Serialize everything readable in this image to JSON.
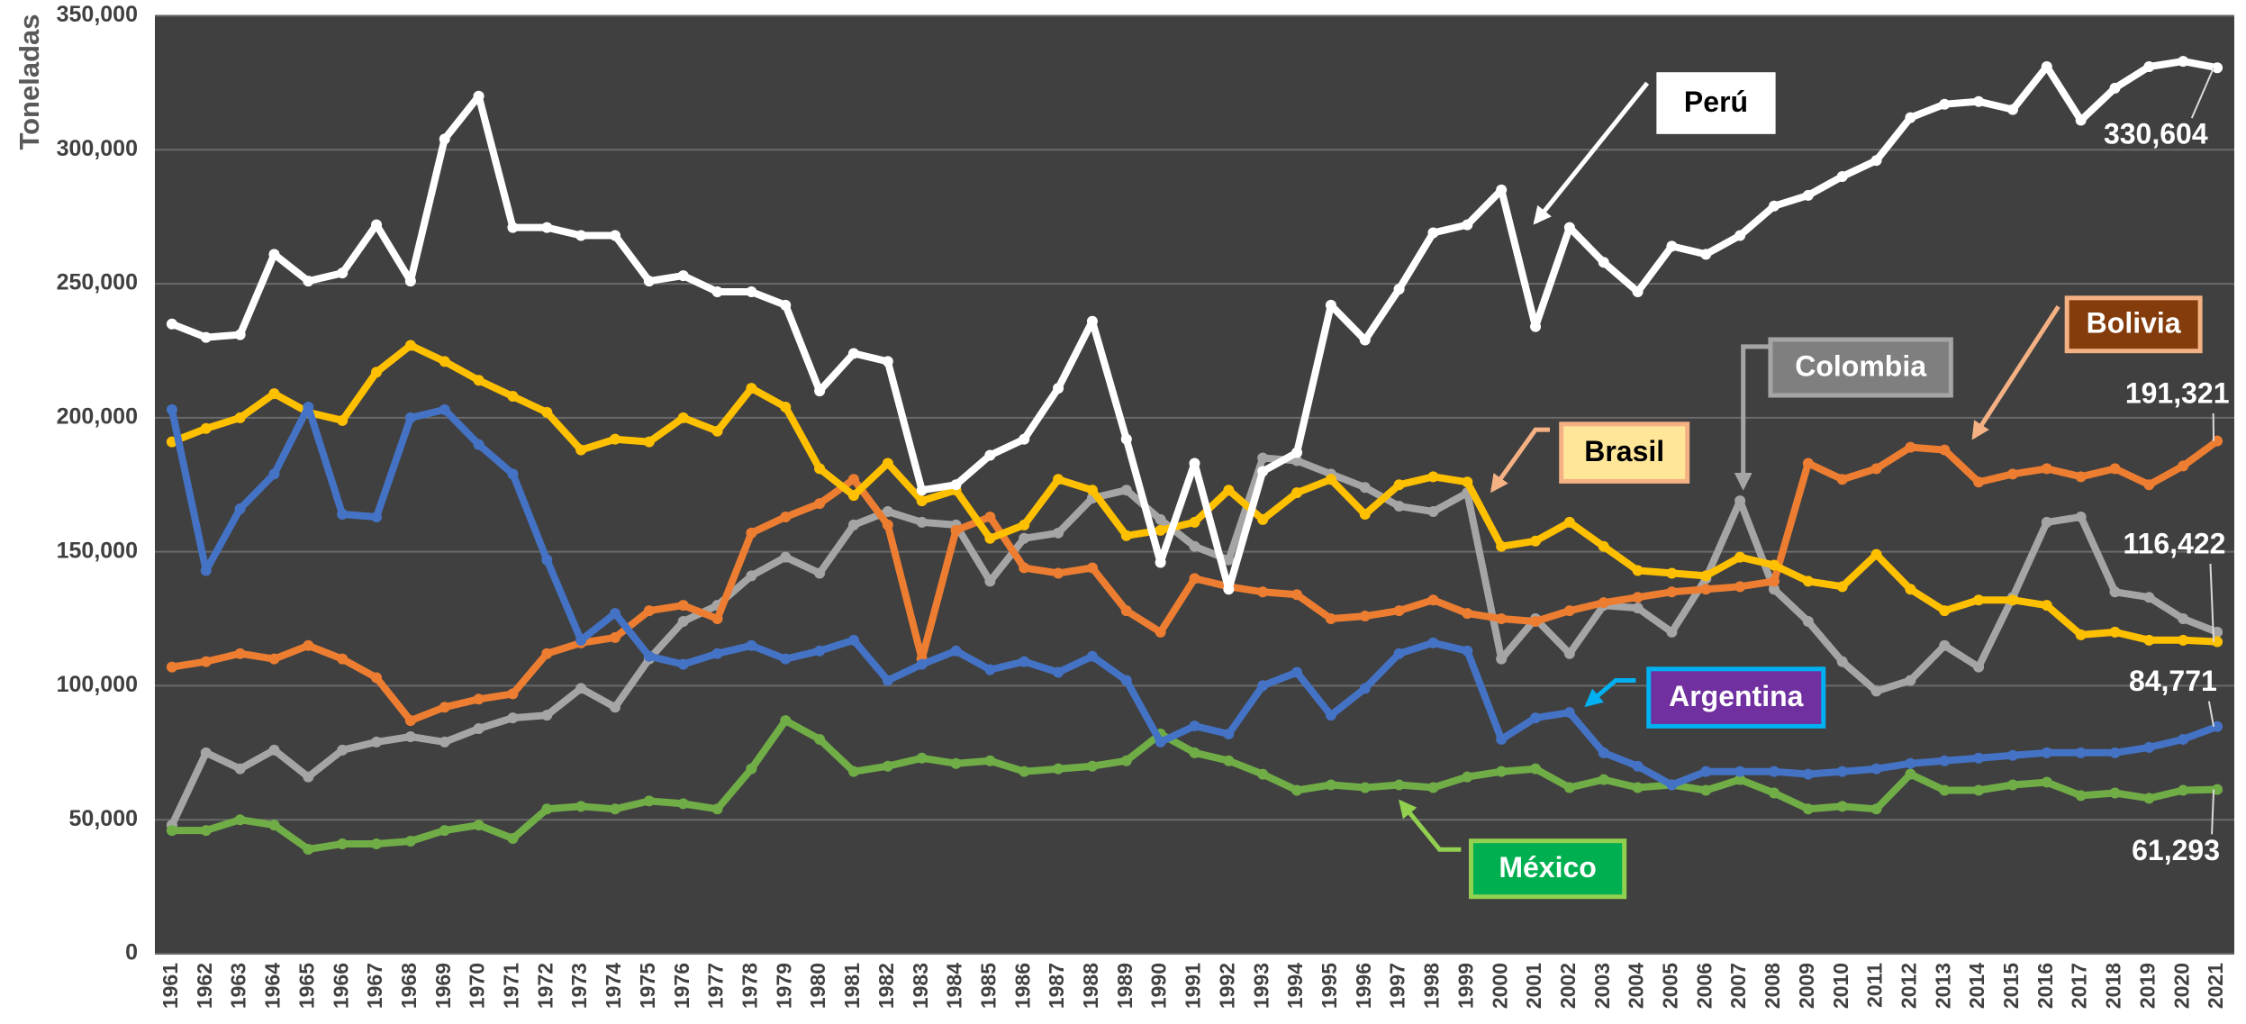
{
  "chart_data": {
    "type": "line",
    "ylabel": "Toneladas",
    "categories": [
      "1961",
      "1962",
      "1963",
      "1964",
      "1965",
      "1966",
      "1967",
      "1968",
      "1969",
      "1970",
      "1971",
      "1972",
      "1973",
      "1974",
      "1975",
      "1976",
      "1977",
      "1978",
      "1979",
      "1980",
      "1981",
      "1982",
      "1983",
      "1984",
      "1985",
      "1986",
      "1987",
      "1988",
      "1989",
      "1990",
      "1991",
      "1992",
      "1993",
      "1994",
      "1995",
      "1996",
      "1997",
      "1998",
      "1999",
      "2000",
      "2001",
      "2002",
      "2003",
      "2004",
      "2005",
      "2006",
      "2007",
      "2008",
      "2009",
      "2010",
      "2011",
      "2012",
      "2013",
      "2014",
      "2015",
      "2016",
      "2017",
      "2018",
      "2019",
      "2020",
      "2021"
    ],
    "ylim": [
      0,
      350000
    ],
    "yticks": [
      0,
      {
        "value": 50000,
        "label": "50,000"
      },
      {
        "value": 100000,
        "label": "100,000"
      },
      {
        "value": 150000,
        "label": "150,000"
      },
      {
        "value": 200000,
        "label": "200,000"
      },
      {
        "value": 250000,
        "label": "250,000"
      },
      {
        "value": 300000,
        "label": "300,000"
      },
      {
        "value": 350000,
        "label": "350,000"
      }
    ],
    "grid": true,
    "series": [
      {
        "name": "Perú",
        "color": "#ffffff",
        "values": [
          235000,
          230000,
          231000,
          261000,
          251000,
          254000,
          272000,
          251000,
          304000,
          320000,
          271000,
          271000,
          268000,
          268000,
          251000,
          253000,
          247000,
          247000,
          242000,
          210000,
          224000,
          221000,
          173000,
          175000,
          186000,
          192000,
          211000,
          236000,
          192000,
          146000,
          183000,
          136000,
          180000,
          187000,
          242000,
          229000,
          248000,
          269000,
          272000,
          285000,
          234000,
          271000,
          258000,
          247000,
          264000,
          261000,
          268000,
          279000,
          283000,
          290000,
          296000,
          312000,
          317000,
          318000,
          315000,
          331000,
          311000,
          323000,
          331000,
          333000,
          330604
        ],
        "value_labels": [
          null,
          null,
          null,
          null,
          null,
          null,
          null,
          null,
          null,
          null,
          null,
          null,
          null,
          null,
          null,
          null,
          null,
          null,
          null,
          null,
          null,
          null,
          null,
          null,
          null,
          null,
          null,
          null,
          null,
          null,
          null,
          null,
          null,
          null,
          null,
          null,
          null,
          null,
          null,
          null,
          null,
          null,
          null,
          null,
          null,
          null,
          null,
          null,
          null,
          null,
          null,
          null,
          null,
          null,
          null,
          null,
          null,
          null,
          null,
          null,
          "330,604"
        ]
      },
      {
        "name": "Brasil",
        "color": "#ffc000",
        "values": [
          191000,
          196000,
          200000,
          209000,
          202000,
          199000,
          217000,
          227000,
          221000,
          214000,
          208000,
          202000,
          188000,
          192000,
          191000,
          200000,
          195000,
          211000,
          204000,
          181000,
          171000,
          183000,
          169000,
          173000,
          155000,
          160000,
          177000,
          173000,
          156000,
          158000,
          161000,
          173000,
          162000,
          172000,
          177000,
          164000,
          175000,
          178000,
          176000,
          152000,
          154000,
          161000,
          152000,
          143000,
          142000,
          141000,
          148000,
          145000,
          139000,
          137000,
          149000,
          136000,
          128000,
          132000,
          132000,
          130000,
          119000,
          120000,
          117000,
          117000,
          116422
        ],
        "value_labels": [
          null,
          null,
          null,
          null,
          null,
          null,
          null,
          null,
          null,
          null,
          null,
          null,
          null,
          null,
          null,
          null,
          null,
          null,
          null,
          null,
          null,
          null,
          null,
          null,
          null,
          null,
          null,
          null,
          null,
          null,
          null,
          null,
          null,
          null,
          null,
          null,
          null,
          null,
          null,
          null,
          null,
          null,
          null,
          null,
          null,
          null,
          null,
          null,
          null,
          null,
          null,
          null,
          null,
          null,
          null,
          null,
          null,
          null,
          null,
          null,
          "116,422"
        ]
      },
      {
        "name": "Bolivia",
        "color": "#ed7d31",
        "values": [
          107000,
          109000,
          112000,
          110000,
          115000,
          110000,
          103000,
          87000,
          92000,
          95000,
          97000,
          112000,
          116000,
          118000,
          128000,
          130000,
          125000,
          157000,
          163000,
          168000,
          177000,
          160000,
          110000,
          158000,
          163000,
          144000,
          142000,
          144000,
          128000,
          120000,
          140000,
          137000,
          135000,
          134000,
          125000,
          126000,
          128000,
          132000,
          127000,
          125000,
          124000,
          128000,
          131000,
          133000,
          135000,
          136000,
          137000,
          139000,
          183000,
          177000,
          181000,
          189000,
          188000,
          176000,
          179000,
          181000,
          178000,
          181000,
          175000,
          182000,
          191321
        ],
        "value_labels": [
          null,
          null,
          null,
          null,
          null,
          null,
          null,
          null,
          null,
          null,
          null,
          null,
          null,
          null,
          null,
          null,
          null,
          null,
          null,
          null,
          null,
          null,
          null,
          null,
          null,
          null,
          null,
          null,
          null,
          null,
          null,
          null,
          null,
          null,
          null,
          null,
          null,
          null,
          null,
          null,
          null,
          null,
          null,
          null,
          null,
          null,
          null,
          null,
          null,
          null,
          null,
          null,
          null,
          null,
          null,
          null,
          null,
          null,
          null,
          null,
          "191,321"
        ]
      },
      {
        "name": "Colombia",
        "color": "#a5a5a5",
        "values": [
          48000,
          75000,
          69000,
          76000,
          66000,
          76000,
          79000,
          81000,
          79000,
          84000,
          88000,
          89000,
          99000,
          92000,
          110000,
          124000,
          130000,
          141000,
          148000,
          142000,
          160000,
          165000,
          161000,
          160000,
          139000,
          155000,
          157000,
          170000,
          173000,
          162000,
          152000,
          147000,
          185000,
          184000,
          179000,
          174000,
          167000,
          165000,
          172000,
          110000,
          125000,
          112000,
          130000,
          129000,
          120000,
          140000,
          169000,
          136000,
          124000,
          109000,
          98000,
          102000,
          115000,
          107000,
          133000,
          161000,
          163000,
          135000,
          133000,
          125000,
          120000
        ]
      },
      {
        "name": "Argentina",
        "color": "#4472c4",
        "values": [
          203000,
          143000,
          166000,
          179000,
          204000,
          164000,
          163000,
          200000,
          203000,
          190000,
          179000,
          147000,
          117000,
          127000,
          111000,
          108000,
          112000,
          115000,
          110000,
          113000,
          117000,
          102000,
          108000,
          113000,
          106000,
          109000,
          105000,
          111000,
          102000,
          79000,
          85000,
          82000,
          100000,
          105000,
          89000,
          99000,
          112000,
          116000,
          113000,
          80000,
          88000,
          90000,
          75000,
          70000,
          63000,
          68000,
          68000,
          68000,
          67000,
          68000,
          69000,
          71000,
          72000,
          73000,
          74000,
          75000,
          75000,
          75000,
          77000,
          80000,
          84771
        ],
        "value_labels": [
          null,
          null,
          null,
          null,
          null,
          null,
          null,
          null,
          null,
          null,
          null,
          null,
          null,
          null,
          null,
          null,
          null,
          null,
          null,
          null,
          null,
          null,
          null,
          null,
          null,
          null,
          null,
          null,
          null,
          null,
          null,
          null,
          null,
          null,
          null,
          null,
          null,
          null,
          null,
          null,
          null,
          null,
          null,
          null,
          null,
          null,
          null,
          null,
          null,
          null,
          null,
          null,
          null,
          null,
          null,
          null,
          null,
          null,
          null,
          null,
          "84,771"
        ]
      },
      {
        "name": "México",
        "color": "#70ad47",
        "values": [
          46000,
          46000,
          50000,
          48000,
          39000,
          41000,
          41000,
          42000,
          46000,
          48000,
          43000,
          54000,
          55000,
          54000,
          57000,
          56000,
          54000,
          69000,
          87000,
          80000,
          68000,
          70000,
          73000,
          71000,
          72000,
          68000,
          69000,
          70000,
          72000,
          82000,
          75000,
          72000,
          67000,
          61000,
          63000,
          62000,
          63000,
          62000,
          66000,
          68000,
          69000,
          62000,
          65000,
          62000,
          63000,
          61000,
          65000,
          60000,
          54000,
          55000,
          54000,
          67000,
          61000,
          61000,
          63000,
          64000,
          59000,
          60000,
          58000,
          61000,
          61293
        ],
        "value_labels": [
          null,
          null,
          null,
          null,
          null,
          null,
          null,
          null,
          null,
          null,
          null,
          null,
          null,
          null,
          null,
          null,
          null,
          null,
          null,
          null,
          null,
          null,
          null,
          null,
          null,
          null,
          null,
          null,
          null,
          null,
          null,
          null,
          null,
          null,
          null,
          null,
          null,
          null,
          null,
          null,
          null,
          null,
          null,
          null,
          null,
          null,
          null,
          null,
          null,
          null,
          null,
          null,
          null,
          null,
          null,
          null,
          null,
          null,
          null,
          null,
          "61,293"
        ]
      }
    ]
  }
}
